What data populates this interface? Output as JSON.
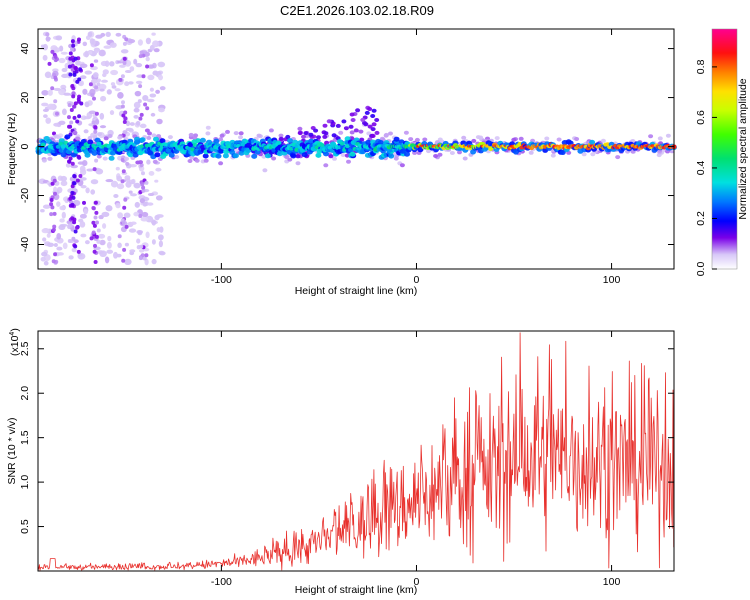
{
  "title": "C2E1.2026.103.02.18.R09",
  "chart_data": [
    {
      "type": "heatmap",
      "panel": "spectrogram",
      "xlabel": "Height of straight line (km)",
      "ylabel": "Frequency (Hz)",
      "xlim": [
        -194,
        132
      ],
      "ylim": [
        -50,
        48
      ],
      "xticks": [
        -100,
        0,
        100
      ],
      "yticks": [
        -40,
        -20,
        0,
        20,
        40
      ],
      "description_band": {
        "center_hz": 0,
        "halfwidth_hz_left": 5,
        "halfwidth_hz_right": 3,
        "strong_from_km": -5
      },
      "colorbar": {
        "label": "Normalized spectral amplitude",
        "range": [
          0.0,
          0.95
        ],
        "ticks": [
          "0.0",
          "0.2",
          "0.4",
          "0.6",
          "0.8"
        ],
        "tick_values": [
          0.0,
          0.2,
          0.4,
          0.6,
          0.8
        ]
      }
    },
    {
      "type": "line",
      "panel": "snr",
      "xlabel": "Height of straight line (km)",
      "ylabel": "SNR (10 * v/v)",
      "multiplier_label": "(x10",
      "multiplier_exp": "4",
      "xlim": [
        -194,
        132
      ],
      "ylim": [
        0,
        2.7
      ],
      "xticks": [
        -100,
        0,
        100
      ],
      "yticks": [
        "0.5",
        "1.0",
        "1.5",
        "2.0",
        "2.5"
      ],
      "ytick_values": [
        0.5,
        1.0,
        1.5,
        2.0,
        2.5
      ],
      "series": [
        {
          "name": "SNR",
          "color": "#e8312d",
          "envelope_x": [
            -194,
            -120,
            -90,
            -60,
            -40,
            -20,
            0,
            20,
            40,
            60,
            80,
            100,
            120,
            132
          ],
          "envelope_mean": [
            0.04,
            0.05,
            0.1,
            0.25,
            0.4,
            0.6,
            0.8,
            1.0,
            1.15,
            1.25,
            1.25,
            1.2,
            1.15,
            1.15
          ],
          "peak": {
            "x": 53,
            "y": 2.68
          }
        }
      ]
    }
  ],
  "colors": {
    "line": "#e8312d",
    "axis": "#000000"
  }
}
